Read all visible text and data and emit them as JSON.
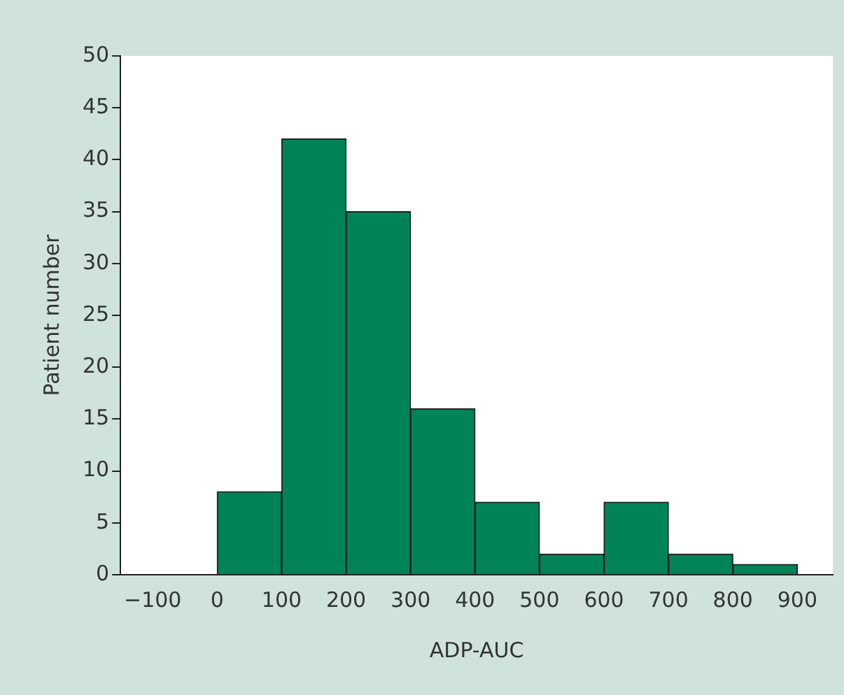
{
  "chart_data": {
    "type": "histogram",
    "xlabel": "ADP-AUC",
    "ylabel": "Patient number",
    "bins": [
      0,
      100,
      200,
      300,
      400,
      500,
      600,
      700,
      800,
      900
    ],
    "values": [
      8,
      42,
      35,
      16,
      7,
      2,
      7,
      2,
      1
    ],
    "color": "#008457",
    "xlim": [
      -150,
      955
    ],
    "xticks": [
      {
        "value": -100,
        "label": "−100"
      },
      0,
      100,
      200,
      300,
      400,
      500,
      600,
      700,
      800,
      900
    ],
    "ylim": [
      0,
      50
    ],
    "yticks": [
      0,
      5,
      10,
      15,
      20,
      25,
      30,
      35,
      40,
      45,
      50
    ],
    "grid": false,
    "legend": false
  }
}
